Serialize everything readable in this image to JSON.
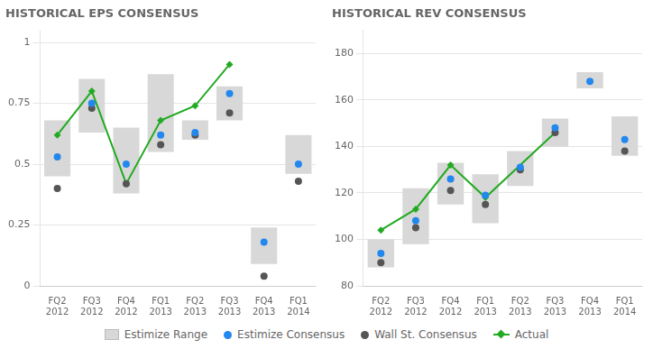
{
  "chart_data": [
    {
      "type": "bar",
      "title": "HISTORICAL EPS CONSENSUS",
      "categories": [
        "FQ2\n2012",
        "FQ3\n2012",
        "FQ4\n2012",
        "FQ1\n2013",
        "FQ2\n2013",
        "FQ3\n2013",
        "FQ4\n2013",
        "FQ1\n2014"
      ],
      "series": [
        {
          "name": "Estimize Range",
          "type": "bar",
          "color": "#d8d8d8",
          "values": [
            [
              0.45,
              0.68
            ],
            [
              0.63,
              0.85
            ],
            [
              0.38,
              0.65
            ],
            [
              0.55,
              0.87
            ],
            [
              0.6,
              0.68
            ],
            [
              0.68,
              0.82
            ],
            [
              0.09,
              0.24
            ],
            [
              0.46,
              0.62
            ]
          ]
        },
        {
          "name": "Estimize Consensus",
          "type": "scatter",
          "marker": "circle",
          "color": "#2288ee",
          "values": [
            0.53,
            0.75,
            0.5,
            0.62,
            0.63,
            0.79,
            0.18,
            0.5
          ]
        },
        {
          "name": "Wall St. Consensus",
          "type": "scatter",
          "marker": "circle",
          "color": "#555555",
          "values": [
            0.4,
            0.73,
            0.42,
            0.58,
            0.62,
            0.71,
            0.04,
            0.43
          ]
        },
        {
          "name": "Actual",
          "type": "line",
          "marker": "diamond",
          "color": "#22aa22",
          "values": [
            0.62,
            0.8,
            0.42,
            0.68,
            0.74,
            0.91,
            null,
            null
          ]
        }
      ],
      "ylim": [
        0,
        1.05
      ],
      "yticks": [
        0,
        0.25,
        0.5,
        0.75,
        1
      ],
      "grid": true,
      "legend": "bottom"
    },
    {
      "type": "bar",
      "title": "HISTORICAL REV CONSENSUS",
      "categories": [
        "FQ2\n2012",
        "FQ3\n2012",
        "FQ4\n2012",
        "FQ1\n2013",
        "FQ2\n2013",
        "FQ3\n2013",
        "FQ4\n2013",
        "FQ1\n2014"
      ],
      "series": [
        {
          "name": "Estimize Range",
          "type": "bar",
          "color": "#d8d8d8",
          "values": [
            [
              88,
              100
            ],
            [
              98,
              122
            ],
            [
              115,
              133
            ],
            [
              107,
              128
            ],
            [
              123,
              138
            ],
            [
              140,
              152
            ],
            [
              165,
              172
            ],
            [
              136,
              153
            ]
          ]
        },
        {
          "name": "Estimize Consensus",
          "type": "scatter",
          "marker": "circle",
          "color": "#2288ee",
          "values": [
            94,
            108,
            126,
            119,
            131,
            148,
            168,
            143
          ]
        },
        {
          "name": "Wall St. Consensus",
          "type": "scatter",
          "marker": "circle",
          "color": "#555555",
          "values": [
            90,
            105,
            121,
            115,
            130,
            146,
            null,
            138
          ]
        },
        {
          "name": "Actual",
          "type": "line",
          "marker": "diamond",
          "color": "#22aa22",
          "values": [
            104,
            113,
            132,
            118,
            null,
            146,
            null,
            null
          ]
        }
      ],
      "ylim": [
        80,
        190
      ],
      "yticks": [
        80,
        100,
        120,
        140,
        160,
        180
      ],
      "grid": true,
      "legend": "bottom"
    }
  ]
}
